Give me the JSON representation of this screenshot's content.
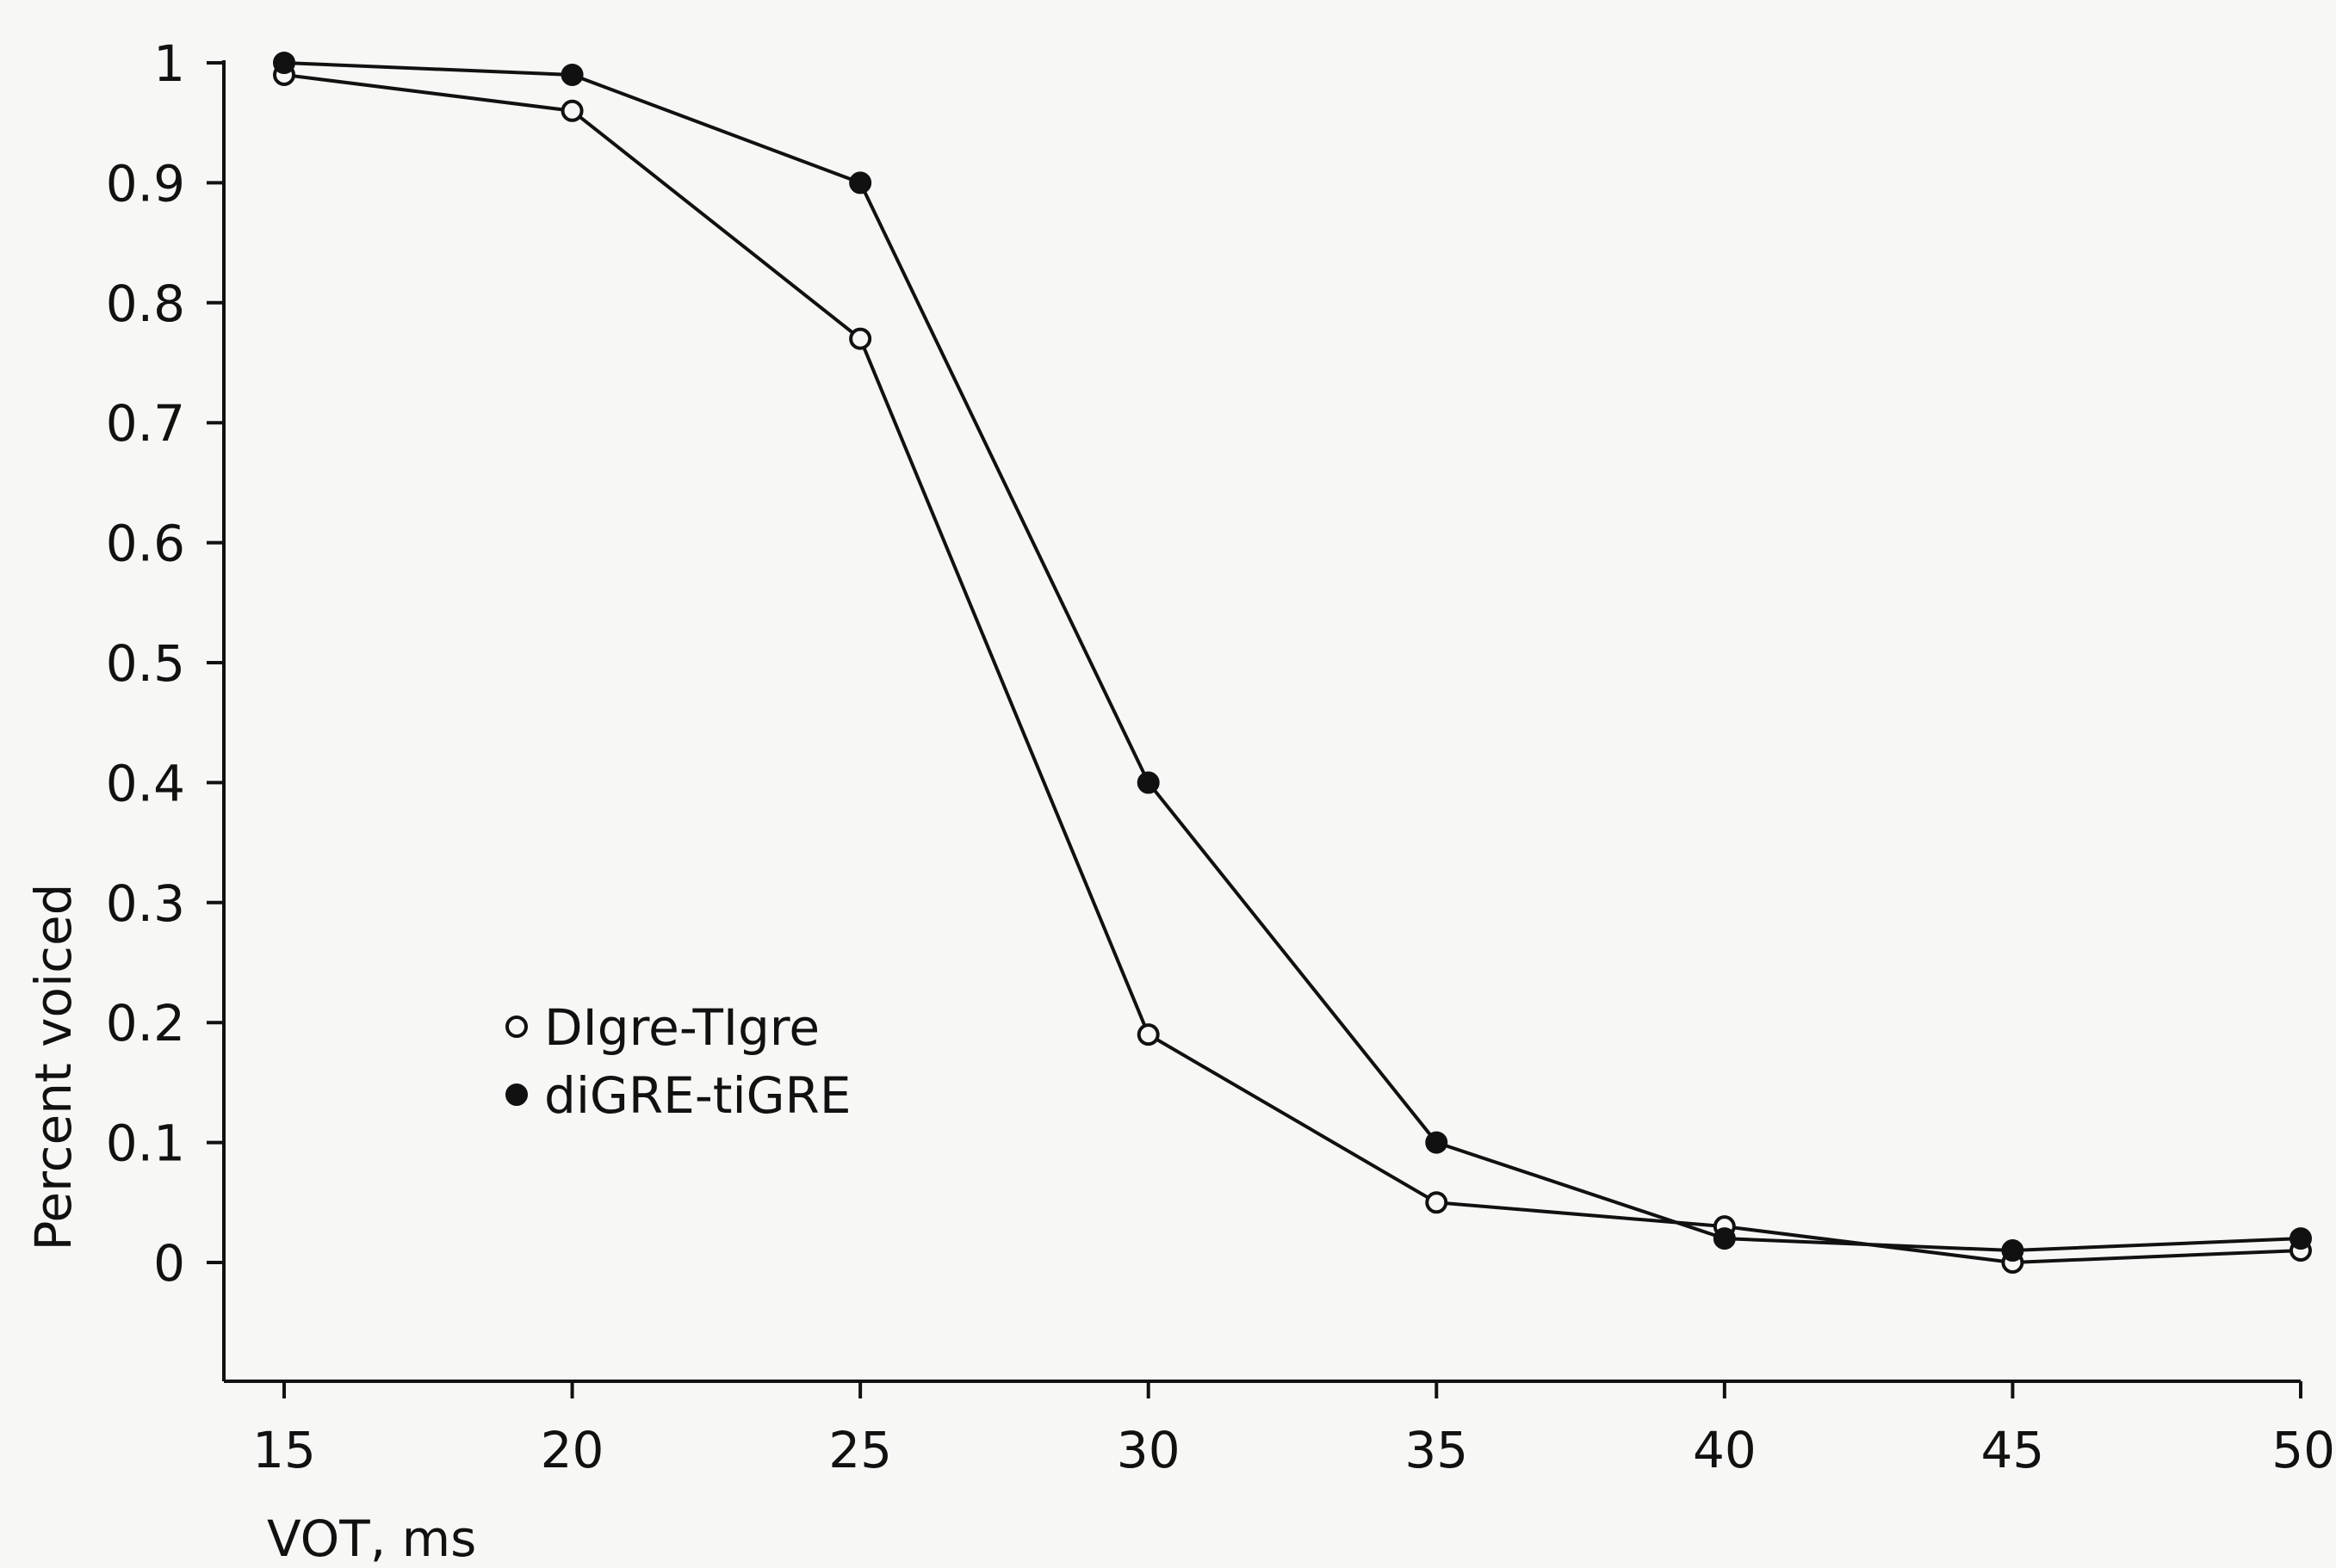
{
  "chart_data": {
    "type": "line",
    "xlabel": "VOT, ms",
    "ylabel": "Percent voiced",
    "x": [
      15,
      20,
      25,
      30,
      35,
      40,
      45,
      50
    ],
    "x_ticks": [
      "15",
      "20",
      "25",
      "30",
      "35",
      "40",
      "45",
      "50"
    ],
    "y_ticks": [
      "0",
      "0.1",
      "0.2",
      "0.3",
      "0.4",
      "0.5",
      "0.6",
      "0.7",
      "0.8",
      "0.9",
      "1"
    ],
    "xlim": [
      14,
      50
    ],
    "ylim": [
      -0.1,
      1.05
    ],
    "grid": false,
    "legend_position": "center-left",
    "series": [
      {
        "name": "DIgre-TIgre",
        "marker": "open-circle",
        "values": [
          0.99,
          0.96,
          0.77,
          0.19,
          0.05,
          0.03,
          0.0,
          0.01
        ]
      },
      {
        "name": "diGRE-tiGRE",
        "marker": "filled-circle",
        "values": [
          1.0,
          0.99,
          0.9,
          0.4,
          0.1,
          0.02,
          0.01,
          0.02
        ]
      }
    ]
  }
}
